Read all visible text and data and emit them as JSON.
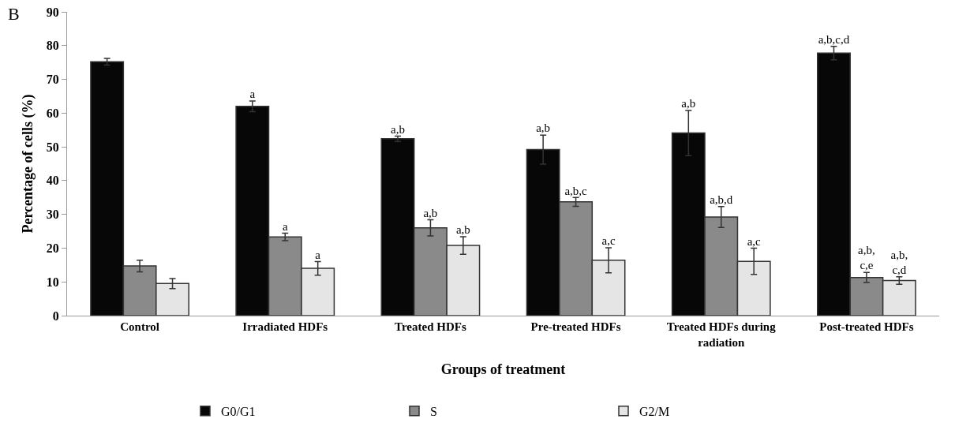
{
  "chart_data": {
    "type": "bar",
    "xlabel": "Groups of treatment",
    "ylabel": "Percentage of cells (%)",
    "annotations": [
      "B"
    ],
    "categories": [
      "Control",
      "Irradiated HDFs",
      "Treated HDFs",
      "Pre-treated HDFs",
      "Treated HDFs during radiation",
      "Post-treated HDFs"
    ],
    "series": [
      {
        "name": "G0/G1",
        "color": "#070707",
        "values": [
          75.2,
          62,
          52.4,
          49.2,
          54.1,
          77.8
        ],
        "errors": [
          1,
          1.6,
          0.8,
          4.3,
          6.7,
          2
        ],
        "value_labels": [
          null,
          "a",
          "a,b",
          "a,b",
          "a,b",
          "a,b,c,d"
        ]
      },
      {
        "name": "S",
        "color": "#8a8a8a",
        "values": [
          14.7,
          23.3,
          26,
          33.7,
          29.2,
          11.3
        ],
        "errors": [
          1.7,
          1.1,
          2.4,
          1.3,
          3.1,
          1.5
        ],
        "value_labels": [
          null,
          "a",
          "a,b",
          "a,b,c",
          "a,b,d",
          "a,b,c,e"
        ]
      },
      {
        "name": "G2/M",
        "color": "#e5e5e5",
        "values": [
          9.5,
          14,
          20.8,
          16.4,
          16.1,
          10.4
        ],
        "errors": [
          1.5,
          2,
          2.6,
          3.7,
          3.9,
          1.1
        ],
        "value_labels": [
          null,
          "a",
          "a,b",
          "a,c",
          "a,c",
          "a,b,c,d"
        ]
      }
    ],
    "ylim": [
      0,
      90
    ],
    "yticks": [
      0,
      10,
      20,
      30,
      40,
      50,
      60,
      70,
      80,
      90
    ],
    "grid": false,
    "legend": "bottom"
  }
}
